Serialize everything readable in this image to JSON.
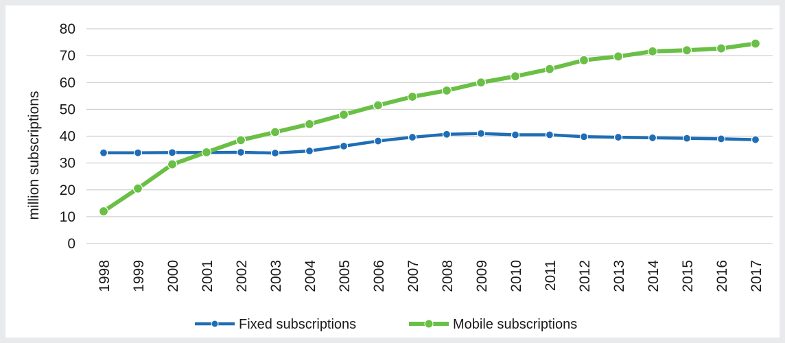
{
  "chart_data": {
    "type": "line",
    "title": "",
    "xlabel": "",
    "ylabel": "million subscriptions",
    "ylim": [
      0,
      80
    ],
    "yticks": [
      "0",
      "10",
      "20",
      "30",
      "40",
      "50",
      "60",
      "70",
      "80"
    ],
    "grid": true,
    "legend_position": "bottom",
    "x": [
      "1998",
      "1999",
      "2000",
      "2001",
      "2002",
      "2003",
      "2004",
      "2005",
      "2006",
      "2007",
      "2008",
      "2009",
      "2010",
      "2011",
      "2012",
      "2013",
      "2014",
      "2015",
      "2016",
      "2017"
    ],
    "series": [
      {
        "name": "Fixed subscriptions",
        "color": "#1f6db5",
        "values": [
          33.8,
          33.8,
          33.9,
          33.9,
          34.0,
          33.7,
          34.5,
          36.3,
          38.2,
          39.6,
          40.7,
          41.0,
          40.5,
          40.5,
          39.8,
          39.6,
          39.4,
          39.2,
          39.0,
          38.7
        ]
      },
      {
        "name": "Mobile subscriptions",
        "color": "#6abf45",
        "values": [
          12.0,
          20.5,
          29.5,
          34.0,
          38.5,
          41.5,
          44.5,
          48.0,
          51.5,
          54.7,
          57.0,
          60.0,
          62.3,
          65.0,
          68.3,
          69.7,
          71.6,
          72.0,
          72.7,
          74.5
        ]
      }
    ]
  }
}
